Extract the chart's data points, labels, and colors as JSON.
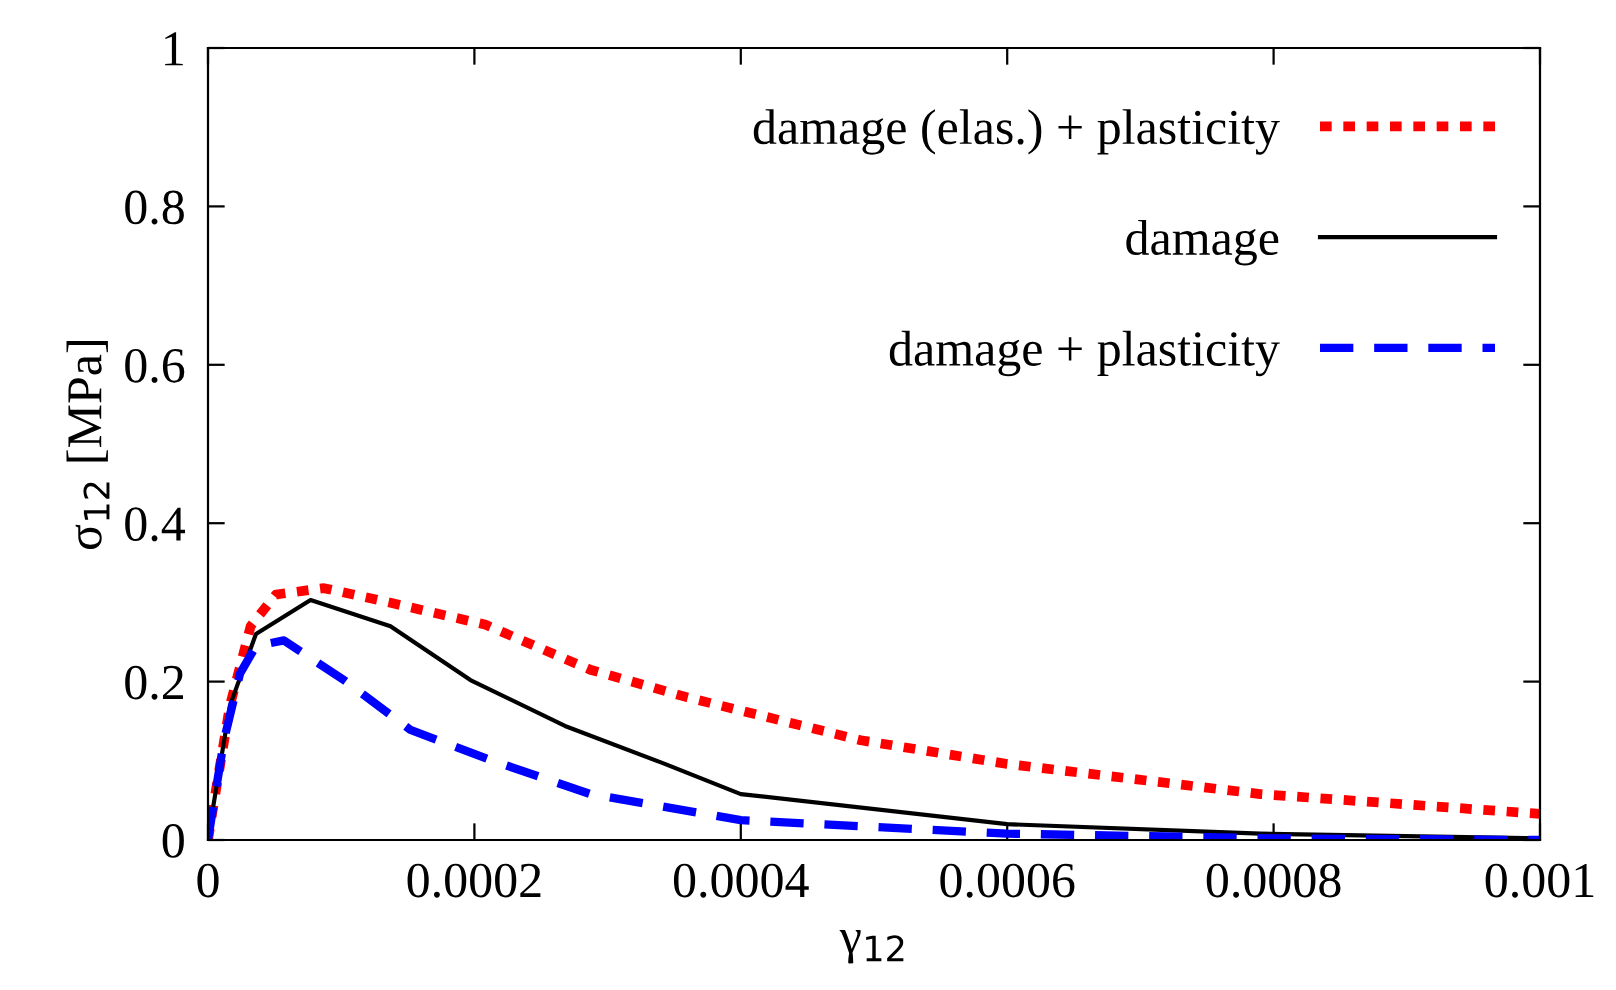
{
  "chart_data": {
    "type": "line",
    "xlabel": "γ$_{12}$",
    "ylabel": "σ$_{12}$ [MPa]",
    "xlim": [
      0,
      0.001
    ],
    "xticks": [
      0,
      0.0002,
      0.0004,
      0.0006,
      0.0008,
      0.001
    ],
    "ylim": [
      0,
      1
    ],
    "yticks": [
      0,
      0.2,
      0.4,
      0.6,
      0.8,
      1
    ],
    "grid": false,
    "legend": "top right",
    "marker": "none",
    "series": [
      {
        "name": "damage (elas.) + plasticity",
        "color": "#ff0000",
        "line_style": "dotted",
        "x": [
          0,
          4e-06,
          1.65e-05,
          3.2e-05,
          5.1e-05,
          8.7e-05,
          0.000141,
          0.000208,
          0.000287,
          0.00036,
          0.00049,
          0.0006,
          0.00079,
          0.001
        ],
        "values": [
          0,
          0.043,
          0.17,
          0.27,
          0.31,
          0.318,
          0.298,
          0.272,
          0.215,
          0.18,
          0.126,
          0.096,
          0.058,
          0.033
        ]
      },
      {
        "name": "damage",
        "color": "#000000",
        "line_style": "solid",
        "x": [
          0,
          4e-06,
          1.65e-05,
          3.6e-05,
          7.7e-05,
          0.000137,
          0.000197,
          0.000268,
          0.00034,
          0.0004,
          0.0006,
          0.00079,
          0.001
        ],
        "values": [
          0,
          0.043,
          0.17,
          0.26,
          0.303,
          0.27,
          0.202,
          0.144,
          0.098,
          0.058,
          0.02,
          0.008,
          0.002
        ]
      },
      {
        "name": "damage + plasticity",
        "color": "#0000ff",
        "line_style": "dashed",
        "x": [
          0,
          4e-06,
          1.2e-05,
          2.4e-05,
          3.6e-05,
          5.7e-05,
          0.000102,
          0.000152,
          0.000212,
          0.000287,
          0.000373,
          0.0004,
          0.0006,
          0.0008,
          0.001
        ],
        "values": [
          0,
          0.043,
          0.126,
          0.21,
          0.245,
          0.252,
          0.202,
          0.139,
          0.101,
          0.058,
          0.033,
          0.025,
          0.008,
          0.002,
          0
        ]
      }
    ]
  }
}
